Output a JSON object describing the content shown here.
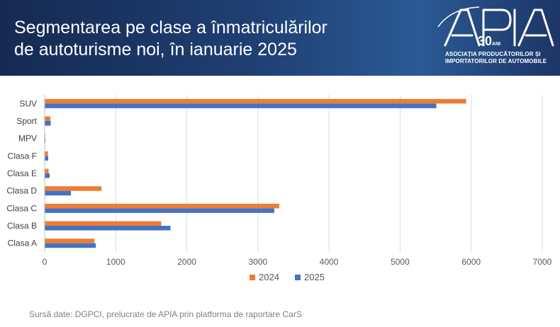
{
  "header": {
    "title_line1": "Segmentarea pe clase a înmatriculărilor",
    "title_line2": "de autoturisme noi, în ianuarie 2025"
  },
  "logo": {
    "name": "APIA",
    "badge": "30",
    "badge_suffix": "ANI",
    "line1": "ASOCIAȚIA PRODUCĂTORILOR ȘI",
    "line2": "IMPORTATORILOR DE AUTOMOBILE"
  },
  "chart_data": {
    "type": "bar",
    "orientation": "horizontal",
    "categories": [
      "SUV",
      "Sport",
      "MPV",
      "Clasa F",
      "Clasa E",
      "Clasa D",
      "Clasa C",
      "Clasa B",
      "Clasa A"
    ],
    "series": [
      {
        "name": "2024",
        "color": "#ed7d31",
        "values": [
          5930,
          80,
          5,
          45,
          55,
          800,
          3300,
          1640,
          700
        ]
      },
      {
        "name": "2025",
        "color": "#4472c4",
        "values": [
          5510,
          85,
          5,
          50,
          70,
          370,
          3230,
          1770,
          720
        ]
      }
    ],
    "xlim": [
      0,
      7000
    ],
    "xticks": [
      0,
      1000,
      2000,
      3000,
      4000,
      5000,
      6000,
      7000
    ],
    "grid": "vertical",
    "legend": "bottom"
  },
  "source": "Sursă date: DGPCI, prelucrate de APIA prin platforma de raportare CarS"
}
